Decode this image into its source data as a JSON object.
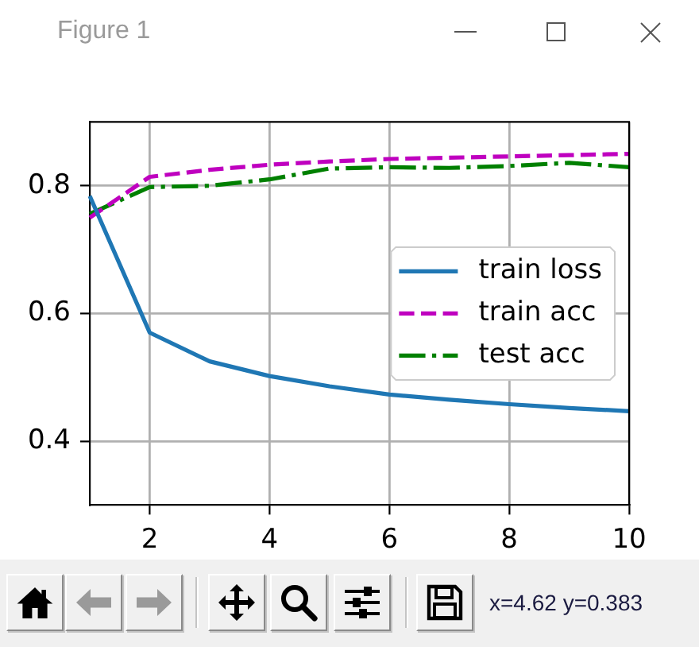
{
  "chart_data": {
    "type": "line",
    "title": "Figure 1",
    "x": [
      1,
      2,
      3,
      4,
      5,
      6,
      7,
      8,
      9,
      10
    ],
    "series": [
      {
        "name": "train loss",
        "color": "#1f77b4",
        "values": [
          0.784,
          0.57,
          0.525,
          0.502,
          0.486,
          0.473,
          0.465,
          0.458,
          0.452,
          0.447
        ]
      },
      {
        "name": "train acc",
        "color": "#bf00bf",
        "line_style": "dashed",
        "values": [
          0.75,
          0.814,
          0.825,
          0.833,
          0.838,
          0.842,
          0.844,
          0.846,
          0.848,
          0.85
        ]
      },
      {
        "name": "test acc",
        "color": "#008000",
        "line_style": "dashdot",
        "values": [
          0.756,
          0.798,
          0.8,
          0.81,
          0.827,
          0.829,
          0.828,
          0.831,
          0.836,
          0.829
        ]
      }
    ],
    "xlim": [
      1,
      10
    ],
    "xticks": [
      2,
      4,
      6,
      8,
      10
    ],
    "ylim": [
      0.3,
      0.9
    ],
    "yticks": [
      0.4,
      0.6,
      0.8
    ],
    "grid": true,
    "legend": "right",
    "annotations": [
      "x=4.62 y=0.383"
    ]
  }
}
